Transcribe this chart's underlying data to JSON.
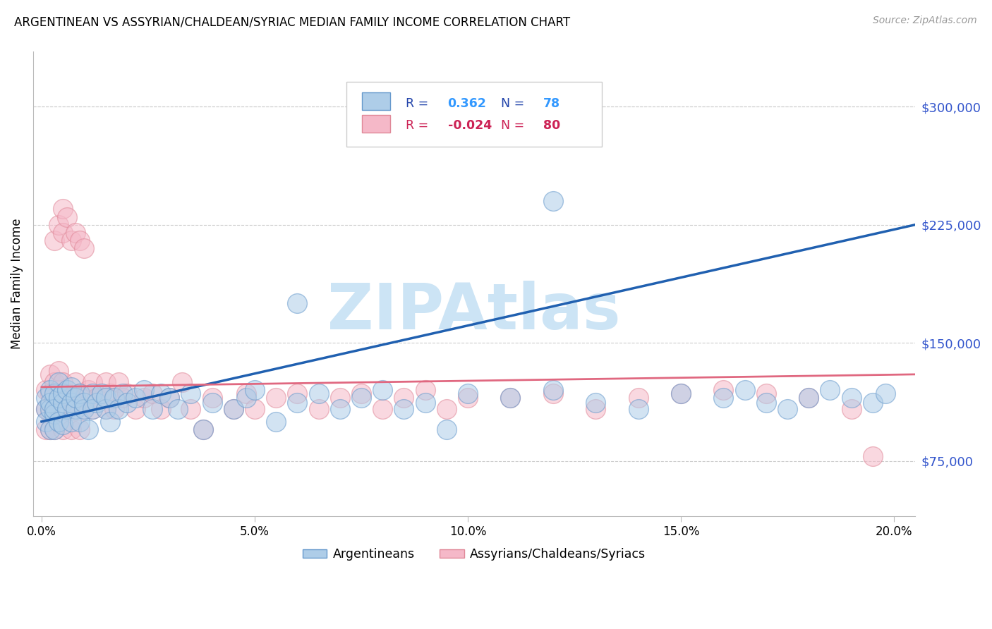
{
  "title": "ARGENTINEAN VS ASSYRIAN/CHALDEAN/SYRIAC MEDIAN FAMILY INCOME CORRELATION CHART",
  "source": "Source: ZipAtlas.com",
  "ylabel": "Median Family Income",
  "xlim": [
    -0.002,
    0.205
  ],
  "ylim": [
    40000,
    335000
  ],
  "yticks": [
    75000,
    150000,
    225000,
    300000
  ],
  "ytick_labels": [
    "$75,000",
    "$150,000",
    "$225,000",
    "$300,000"
  ],
  "xticks": [
    0.0,
    0.05,
    0.1,
    0.15,
    0.2
  ],
  "xtick_labels": [
    "0.0%",
    "5.0%",
    "10.0%",
    "15.0%",
    "20.0%"
  ],
  "blue_R": "0.362",
  "blue_N": "78",
  "pink_R": "-0.024",
  "pink_N": "80",
  "blue_fill_color": "#aecde8",
  "pink_fill_color": "#f5b8c8",
  "blue_edge_color": "#6699cc",
  "pink_edge_color": "#e08898",
  "blue_line_color": "#2060b0",
  "pink_line_color": "#e06880",
  "watermark": "ZIPAtlas",
  "watermark_color": "#cce4f5",
  "legend_label_blue": "Argentineans",
  "legend_label_pink": "Assyrians/Chaldeans/Syriacs",
  "blue_line_x0": 0.0,
  "blue_line_y0": 100000,
  "blue_line_x1": 0.205,
  "blue_line_y1": 225000,
  "pink_line_x0": 0.0,
  "pink_line_y0": 122000,
  "pink_line_x1": 0.205,
  "pink_line_y1": 130000,
  "blue_x": [
    0.001,
    0.001,
    0.001,
    0.002,
    0.002,
    0.002,
    0.002,
    0.003,
    0.003,
    0.003,
    0.003,
    0.004,
    0.004,
    0.004,
    0.005,
    0.005,
    0.005,
    0.006,
    0.006,
    0.007,
    0.007,
    0.007,
    0.008,
    0.008,
    0.009,
    0.009,
    0.01,
    0.01,
    0.011,
    0.012,
    0.012,
    0.013,
    0.014,
    0.015,
    0.015,
    0.016,
    0.017,
    0.018,
    0.019,
    0.02,
    0.022,
    0.024,
    0.026,
    0.028,
    0.03,
    0.032,
    0.035,
    0.038,
    0.04,
    0.045,
    0.048,
    0.05,
    0.055,
    0.06,
    0.065,
    0.07,
    0.075,
    0.08,
    0.085,
    0.09,
    0.095,
    0.1,
    0.11,
    0.12,
    0.13,
    0.14,
    0.15,
    0.16,
    0.165,
    0.17,
    0.175,
    0.18,
    0.185,
    0.19,
    0.195,
    0.198,
    0.06,
    0.12
  ],
  "blue_y": [
    115000,
    108000,
    100000,
    120000,
    108000,
    95000,
    112000,
    118000,
    105000,
    95000,
    108000,
    115000,
    100000,
    125000,
    112000,
    98000,
    118000,
    108000,
    120000,
    100000,
    112000,
    122000,
    108000,
    115000,
    100000,
    118000,
    108000,
    112000,
    95000,
    118000,
    108000,
    112000,
    118000,
    108000,
    115000,
    100000,
    115000,
    108000,
    118000,
    112000,
    115000,
    120000,
    108000,
    118000,
    115000,
    108000,
    118000,
    95000,
    112000,
    108000,
    115000,
    120000,
    100000,
    112000,
    118000,
    108000,
    115000,
    120000,
    108000,
    112000,
    95000,
    118000,
    115000,
    120000,
    112000,
    108000,
    118000,
    115000,
    120000,
    112000,
    108000,
    115000,
    120000,
    115000,
    112000,
    118000,
    175000,
    240000
  ],
  "pink_x": [
    0.001,
    0.001,
    0.001,
    0.002,
    0.002,
    0.002,
    0.002,
    0.003,
    0.003,
    0.003,
    0.003,
    0.004,
    0.004,
    0.004,
    0.005,
    0.005,
    0.005,
    0.006,
    0.006,
    0.007,
    0.007,
    0.008,
    0.008,
    0.009,
    0.009,
    0.01,
    0.01,
    0.011,
    0.012,
    0.012,
    0.013,
    0.014,
    0.015,
    0.015,
    0.016,
    0.017,
    0.018,
    0.019,
    0.02,
    0.022,
    0.024,
    0.026,
    0.028,
    0.03,
    0.033,
    0.035,
    0.038,
    0.04,
    0.045,
    0.048,
    0.05,
    0.055,
    0.06,
    0.065,
    0.07,
    0.075,
    0.08,
    0.085,
    0.09,
    0.095,
    0.1,
    0.11,
    0.12,
    0.13,
    0.14,
    0.15,
    0.16,
    0.17,
    0.18,
    0.19,
    0.003,
    0.004,
    0.005,
    0.005,
    0.006,
    0.007,
    0.008,
    0.009,
    0.01,
    0.195
  ],
  "pink_y": [
    120000,
    108000,
    95000,
    118000,
    105000,
    130000,
    95000,
    115000,
    108000,
    125000,
    95000,
    120000,
    108000,
    132000,
    118000,
    95000,
    125000,
    108000,
    118000,
    95000,
    115000,
    125000,
    108000,
    118000,
    95000,
    115000,
    108000,
    120000,
    108000,
    125000,
    115000,
    118000,
    108000,
    125000,
    118000,
    108000,
    125000,
    115000,
    118000,
    108000,
    115000,
    118000,
    108000,
    115000,
    125000,
    108000,
    95000,
    115000,
    108000,
    118000,
    108000,
    115000,
    118000,
    108000,
    115000,
    118000,
    108000,
    115000,
    120000,
    108000,
    115000,
    115000,
    118000,
    108000,
    115000,
    118000,
    120000,
    118000,
    115000,
    108000,
    215000,
    225000,
    235000,
    220000,
    230000,
    215000,
    220000,
    215000,
    210000,
    78000
  ]
}
